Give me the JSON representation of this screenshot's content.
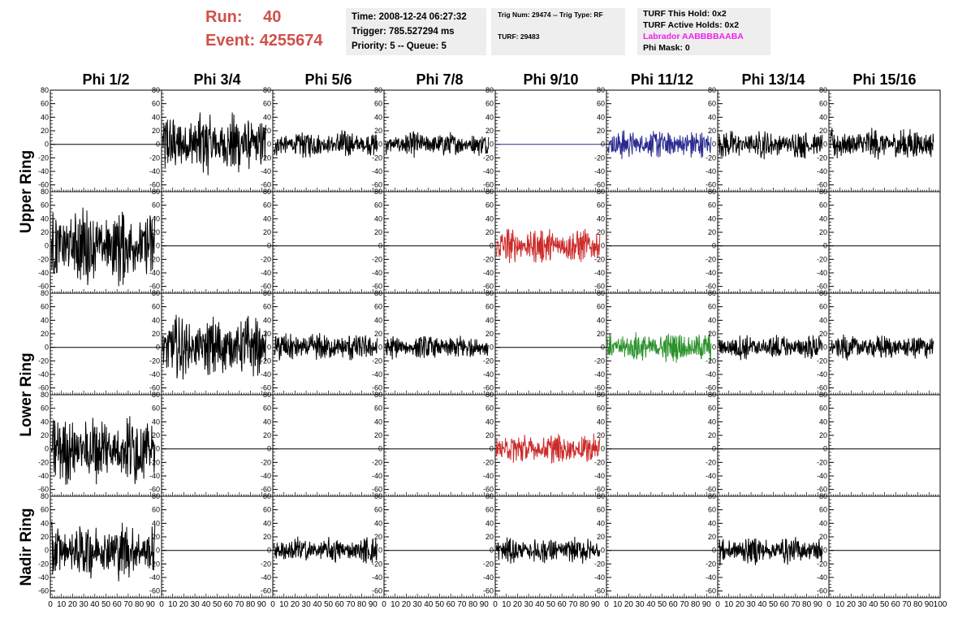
{
  "header": {
    "run_label": "Run:",
    "run_value": "40",
    "event_label": "Event:",
    "event_value": "4255674",
    "time": "Time: 2008-12-24 06:27:32",
    "trigger": "Trigger: 785.527294 ms",
    "priority": "Priority: 5 -- Queue: 5",
    "trig_num": "Trig Num: 29474 -- Trig Type: RF",
    "turf": "TURF: 29483",
    "turf_this_hold": "TURF This Hold: 0x2",
    "turf_active_holds": "TURF Active Holds: 0x2",
    "labrador": "Labrador AABBBBAABA",
    "phi_mask": "Phi Mask: 0",
    "labrador_color": "#ee22ee"
  },
  "chart_data": {
    "type": "line",
    "columns": [
      "Phi 1/2",
      "Phi 3/4",
      "Phi 5/6",
      "Phi 7/8",
      "Phi 9/10",
      "Phi 11/12",
      "Phi 13/14",
      "Phi 15/16"
    ],
    "ring_labels": [
      {
        "label": "Upper Ring",
        "rows": [
          0,
          1
        ]
      },
      {
        "label": "Lower Ring",
        "rows": [
          2,
          3
        ]
      },
      {
        "label": "Nadir Ring",
        "rows": [
          4
        ]
      }
    ],
    "xlim": [
      0,
      100
    ],
    "ylim": [
      -70,
      80
    ],
    "yticks": [
      80,
      60,
      40,
      20,
      0,
      -20,
      -40,
      -60
    ],
    "xticks": [
      0,
      10,
      20,
      30,
      40,
      50,
      60,
      70,
      80,
      90
    ],
    "last_xtick": 100,
    "colors": {
      "default": "#000000",
      "blue": "#2a2a90",
      "red": "#cc2a2a",
      "green": "#2a922a"
    },
    "rows": [
      [
        {
          "amp": 0,
          "color": "default"
        },
        {
          "amp": 32,
          "color": "default"
        },
        {
          "amp": 13,
          "color": "default"
        },
        {
          "amp": 12,
          "color": "default"
        },
        {
          "amp": 0,
          "color": "blue"
        },
        {
          "amp": 14,
          "color": "blue"
        },
        {
          "amp": 14,
          "color": "default"
        },
        {
          "amp": 16,
          "color": "default"
        }
      ],
      [
        {
          "amp": 38,
          "color": "default"
        },
        {
          "amp": 0,
          "color": "default"
        },
        {
          "amp": 0,
          "color": "default"
        },
        {
          "amp": 0,
          "color": "default"
        },
        {
          "amp": 18,
          "color": "red"
        },
        {
          "amp": 0,
          "color": "default"
        },
        {
          "amp": 0,
          "color": "default"
        },
        {
          "amp": 0,
          "color": "default"
        }
      ],
      [
        {
          "amp": 0,
          "color": "default"
        },
        {
          "amp": 30,
          "color": "default"
        },
        {
          "amp": 14,
          "color": "default"
        },
        {
          "amp": 12,
          "color": "default"
        },
        {
          "amp": 0,
          "color": "default"
        },
        {
          "amp": 15,
          "color": "green"
        },
        {
          "amp": 12,
          "color": "default"
        },
        {
          "amp": 12,
          "color": "default"
        }
      ],
      [
        {
          "amp": 35,
          "color": "default"
        },
        {
          "amp": 0,
          "color": "default"
        },
        {
          "amp": 0,
          "color": "default"
        },
        {
          "amp": 0,
          "color": "default"
        },
        {
          "amp": 15,
          "color": "red"
        },
        {
          "amp": 0,
          "color": "default"
        },
        {
          "amp": 0,
          "color": "default"
        },
        {
          "amp": 0,
          "color": "default"
        }
      ],
      [
        {
          "amp": 28,
          "color": "default"
        },
        {
          "amp": 0,
          "color": "default"
        },
        {
          "amp": 13,
          "color": "default"
        },
        {
          "amp": 0,
          "color": "default"
        },
        {
          "amp": 13,
          "color": "default"
        },
        {
          "amp": 0,
          "color": "default"
        },
        {
          "amp": 14,
          "color": "default"
        },
        {
          "amp": 0,
          "color": "default"
        }
      ]
    ]
  }
}
